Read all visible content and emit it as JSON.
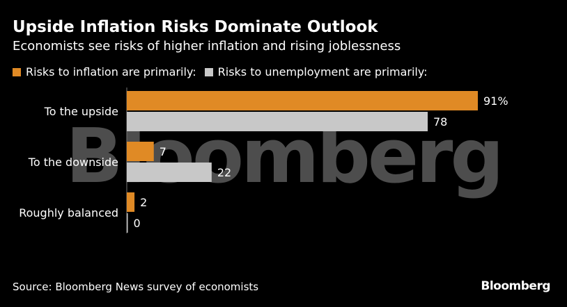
{
  "header": {
    "title": "Upside Inflation Risks Dominate Outlook",
    "subtitle": "Economists see risks of higher inflation and rising joblessness"
  },
  "watermark": {
    "text": "Bloomberg"
  },
  "footer": {
    "source": "Source: Bloomberg News survey of economists",
    "logo_text": "Bloomberg"
  },
  "colors": {
    "inflation": "#e08a25",
    "unemployment": "#c8c8c8",
    "background": "#000000",
    "text": "#ffffff"
  },
  "chart_data": {
    "type": "bar",
    "orientation": "horizontal",
    "categories": [
      "To the upside",
      "To the downside",
      "Roughly balanced"
    ],
    "series": [
      {
        "name": "Risks to inflation are primarily:",
        "values": [
          91,
          7,
          2
        ],
        "labels": [
          "91%",
          "7",
          "2"
        ]
      },
      {
        "name": "Risks to unemployment are primarily:",
        "values": [
          78,
          22,
          0
        ],
        "labels": [
          "78",
          "22",
          "0"
        ]
      }
    ],
    "xlim": [
      0,
      91
    ],
    "grid": false,
    "legend": "top-left"
  }
}
